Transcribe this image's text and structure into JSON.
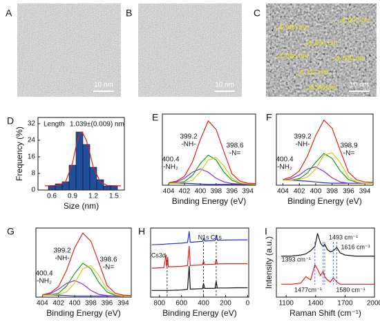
{
  "panels": [
    {
      "label": "A",
      "type": "image",
      "scale_bar": "10 nm"
    },
    {
      "label": "B",
      "type": "image",
      "scale_bar": "10 nm"
    },
    {
      "label": "C",
      "type": "image",
      "scale_bar": "10 nm",
      "annotations": [
        {
          "text": "0.962 nm"
        },
        {
          "text": "1.022 nm"
        },
        {
          "text": "1.004 nm"
        },
        {
          "text": "1.036 nm"
        },
        {
          "text": "1.040 nm"
        },
        {
          "text": "1.111 nm"
        },
        {
          "text": "0.900nm"
        }
      ]
    },
    {
      "label": "D",
      "type": "histogram",
      "x_label": "Size (nm)",
      "y_label": "Frequency (%)",
      "legend_text": "Length",
      "legend_value": "1.039±(0.009) nm",
      "bins": [
        0.55,
        0.65,
        0.75,
        0.85,
        0.95,
        1.05,
        1.15,
        1.25,
        1.35,
        1.45,
        1.55
      ],
      "counts": [
        2,
        3,
        4,
        12,
        28,
        22,
        11,
        5,
        2,
        2
      ],
      "color": "#1f4e9c",
      "fit": {
        "x": [
          0.5,
          0.7,
          0.8,
          0.9,
          0.95,
          1.0,
          1.04,
          1.1,
          1.15,
          1.2,
          1.3,
          1.4,
          1.6
        ],
        "values": [
          2,
          2.3,
          4,
          13,
          21,
          27,
          28,
          24,
          18,
          11,
          4,
          2.2,
          2
        ],
        "color": "#e02020"
      },
      "xlim": [
        0.4,
        1.65
      ],
      "ylim": [
        0,
        35
      ],
      "xticks": [
        0.6,
        0.9,
        1.2,
        1.5
      ],
      "yticks": [
        0,
        8,
        16,
        24,
        32
      ]
    },
    {
      "label": "E",
      "type": "line",
      "x_label": "Binding Energy (eV)",
      "xlim": [
        404.8,
        393
      ],
      "ylim": [
        0,
        1.75
      ],
      "xticks": [
        404,
        402,
        400,
        398,
        396,
        394
      ],
      "x": [
        404,
        403,
        402,
        401,
        400,
        399,
        398,
        397,
        396,
        395,
        394,
        393
      ],
      "series": [
        {
          "color": "#2b2bd9",
          "values": [
            0.05,
            0.05,
            0.05,
            0.04,
            0.03,
            0.02,
            0.02,
            0.02,
            0.02,
            0.02,
            0.02,
            0.02
          ]
        },
        {
          "color": "#8a2be2",
          "values": [
            0.05,
            0.08,
            0.17,
            0.32,
            0.4,
            0.32,
            0.17,
            0.08,
            0.04,
            0.03,
            0.02,
            0.02
          ]
        },
        {
          "color": "#1a9a1a",
          "values": [
            0.05,
            0.06,
            0.09,
            0.24,
            0.53,
            0.74,
            0.62,
            0.32,
            0.12,
            0.05,
            0.03,
            0.02
          ]
        },
        {
          "color": "#d8c81a",
          "values": [
            0.05,
            0.05,
            0.07,
            0.12,
            0.33,
            0.62,
            0.68,
            0.47,
            0.17,
            0.06,
            0.03,
            0.02
          ]
        },
        {
          "color": "#e02020",
          "values": [
            0.06,
            0.1,
            0.22,
            0.57,
            1.12,
            1.58,
            1.37,
            0.82,
            0.28,
            0.1,
            0.05,
            0.04
          ]
        }
      ],
      "annotations": [
        {
          "text": "399.2"
        },
        {
          "text": "-NH-"
        },
        {
          "text": "400.4"
        },
        {
          "text": "-NH₂"
        },
        {
          "text": "398.6"
        },
        {
          "text": "-N="
        }
      ]
    },
    {
      "label": "F",
      "type": "line",
      "x_label": "Binding Energy (eV)",
      "xlim": [
        404.8,
        393
      ],
      "ylim": [
        0,
        1.75
      ],
      "xticks": [
        404,
        402,
        400,
        398,
        396,
        394
      ],
      "x": [
        404,
        403,
        402,
        401,
        400,
        399,
        398,
        397,
        396,
        395,
        394,
        393
      ],
      "series": [
        {
          "color": "#2b2bd9",
          "values": [
            0.12,
            0.12,
            0.11,
            0.1,
            0.08,
            0.06,
            0.05,
            0.05,
            0.05,
            0.05,
            0.05,
            0.05
          ]
        },
        {
          "color": "#8a2be2",
          "values": [
            0.12,
            0.16,
            0.25,
            0.4,
            0.45,
            0.34,
            0.18,
            0.08,
            0.05,
            0.05,
            0.05,
            0.05
          ]
        },
        {
          "color": "#1a9a1a",
          "values": [
            0.12,
            0.13,
            0.16,
            0.3,
            0.56,
            0.78,
            0.66,
            0.35,
            0.14,
            0.07,
            0.05,
            0.05
          ]
        },
        {
          "color": "#d8c81a",
          "values": [
            0.12,
            0.12,
            0.14,
            0.2,
            0.4,
            0.74,
            0.8,
            0.55,
            0.2,
            0.08,
            0.05,
            0.05
          ]
        },
        {
          "color": "#e02020",
          "values": [
            0.14,
            0.2,
            0.35,
            0.72,
            1.22,
            1.6,
            1.4,
            0.85,
            0.32,
            0.13,
            0.08,
            0.07
          ]
        }
      ],
      "annotations": [
        {
          "text": "399.2"
        },
        {
          "text": "-NH-"
        },
        {
          "text": "400.4"
        },
        {
          "text": "-NH₂"
        },
        {
          "text": "398.9"
        },
        {
          "text": "-N="
        }
      ]
    },
    {
      "label": "G",
      "type": "line",
      "x_label": "Binding Energy (eV)",
      "xlim": [
        404.8,
        393
      ],
      "ylim": [
        0,
        1.75
      ],
      "xticks": [
        404,
        402,
        400,
        398,
        396,
        394
      ],
      "x": [
        404,
        403,
        402,
        401,
        400,
        399,
        398,
        397,
        396,
        395,
        394,
        393
      ],
      "series": [
        {
          "color": "#2b2bd9",
          "values": [
            0.05,
            0.05,
            0.05,
            0.04,
            0.03,
            0.03,
            0.03,
            0.03,
            0.03,
            0.03,
            0.03,
            0.03
          ]
        },
        {
          "color": "#8a2be2",
          "values": [
            0.05,
            0.09,
            0.2,
            0.35,
            0.42,
            0.33,
            0.17,
            0.07,
            0.04,
            0.03,
            0.03,
            0.03
          ]
        },
        {
          "color": "#1a9a1a",
          "values": [
            0.05,
            0.06,
            0.1,
            0.28,
            0.6,
            0.86,
            0.72,
            0.37,
            0.13,
            0.05,
            0.03,
            0.03
          ]
        },
        {
          "color": "#d8c81a",
          "values": [
            0.05,
            0.05,
            0.07,
            0.13,
            0.36,
            0.72,
            0.8,
            0.55,
            0.19,
            0.06,
            0.03,
            0.03
          ]
        },
        {
          "color": "#e02020",
          "values": [
            0.06,
            0.11,
            0.27,
            0.68,
            1.25,
            1.62,
            1.42,
            0.87,
            0.3,
            0.1,
            0.05,
            0.04
          ]
        }
      ],
      "annotations": [
        {
          "text": "399.2"
        },
        {
          "text": "-NH-"
        },
        {
          "text": "400.4"
        },
        {
          "text": "-NH₂"
        },
        {
          "text": "398.6"
        },
        {
          "text": "-N="
        }
      ]
    },
    {
      "label": "H",
      "type": "line",
      "x_label": "Binding Energy (eV)",
      "xlim": [
        880,
        -10
      ],
      "ylim": [
        0,
        3.1
      ],
      "xticks": [
        800,
        600,
        400,
        200,
        0
      ],
      "x": [
        870,
        760,
        740,
        735,
        725,
        720,
        600,
        545,
        530,
        520,
        410,
        400,
        390,
        295,
        285,
        275,
        200,
        100,
        0
      ],
      "series": [
        {
          "color": "#2b2bd9",
          "values": [
            2.35,
            2.37,
            2.38,
            2.38,
            2.39,
            2.39,
            2.42,
            2.45,
            2.95,
            2.46,
            2.5,
            2.62,
            2.52,
            2.54,
            2.78,
            2.55,
            2.56,
            2.57,
            2.57
          ]
        },
        {
          "color": "#e02020",
          "values": [
            1.3,
            1.32,
            1.9,
            1.36,
            1.8,
            1.36,
            1.38,
            1.42,
            2.3,
            1.42,
            1.45,
            1.62,
            1.46,
            1.48,
            1.7,
            1.49,
            1.5,
            1.5,
            1.5
          ]
        },
        {
          "color": "#111111",
          "values": [
            0.3,
            0.3,
            0.3,
            0.3,
            0.3,
            0.3,
            0.32,
            0.35,
            1.4,
            0.36,
            0.38,
            0.62,
            0.39,
            0.4,
            0.72,
            0.41,
            0.41,
            0.42,
            0.42
          ]
        }
      ],
      "annotations": [
        {
          "text": "N1s",
          "x": 400
        },
        {
          "text": "C1s",
          "x": 285
        },
        {
          "text": "Cs3d",
          "x": 730
        }
      ]
    },
    {
      "label": "I",
      "type": "line",
      "x_label": "Raman Shift (cm⁻¹)",
      "y_label": "Intensity (a.u.)",
      "xlim": [
        1000,
        2000
      ],
      "ylim": [
        0,
        3.2
      ],
      "xticks": [
        1100,
        1400,
        1700,
        2000
      ],
      "x": [
        1050,
        1150,
        1250,
        1300,
        1350,
        1393,
        1420,
        1450,
        1477,
        1493,
        1520,
        1550,
        1580,
        1616,
        1650,
        1700,
        1800,
        1900,
        2000
      ],
      "series": [
        {
          "color": "#111111",
          "values": [
            1.9,
            1.9,
            1.95,
            2.0,
            2.15,
            2.35,
            2.95,
            2.5,
            2.35,
            2.45,
            2.2,
            2.1,
            2.15,
            2.3,
            2.05,
            1.95,
            1.9,
            1.9,
            1.9
          ]
        },
        {
          "color": "#e02020",
          "values": [
            0.6,
            0.6,
            0.65,
            0.95,
            0.8,
            1.5,
            1.3,
            1.0,
            1.2,
            0.95,
            0.8,
            0.7,
            0.9,
            0.7,
            0.6,
            0.6,
            0.6,
            0.6,
            0.6
          ]
        }
      ],
      "annotations": [
        {
          "text": "1493 cm⁻¹",
          "x": 1493
        },
        {
          "text": "1616 cm⁻¹",
          "x": 1616
        },
        {
          "text": "1393 cm⁻¹",
          "x": 1393
        },
        {
          "text": "1477cm⁻¹",
          "x": 1477
        },
        {
          "text": "1580 cm⁻¹",
          "x": 1580
        }
      ]
    }
  ]
}
